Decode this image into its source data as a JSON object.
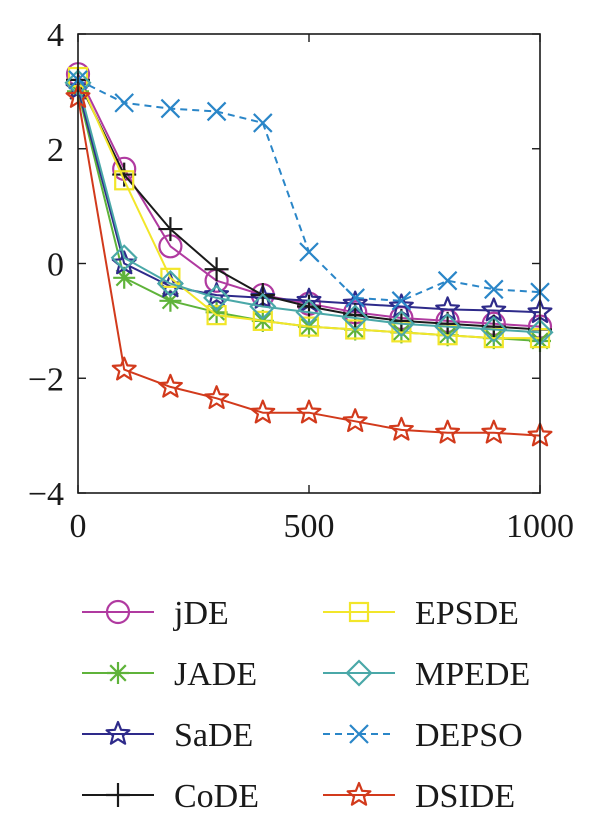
{
  "chart_data": {
    "type": "line",
    "title": "",
    "xlabel": "",
    "ylabel": "",
    "xlim": [
      0,
      1000
    ],
    "ylim": [
      -4,
      4
    ],
    "x_ticks": [
      "0",
      "500",
      "1000"
    ],
    "y_ticks": [
      "4",
      "2",
      "0",
      "−2",
      "−4"
    ],
    "grid": false,
    "legend_placement": "bottom, two columns",
    "x": [
      0,
      100,
      200,
      300,
      400,
      500,
      600,
      700,
      800,
      900,
      1000
    ],
    "series": [
      {
        "name": "jDE",
        "color": "#b03aa0",
        "marker": "circle",
        "dash": "solid",
        "values": [
          3.3,
          1.65,
          0.3,
          -0.3,
          -0.55,
          -0.7,
          -0.85,
          -0.95,
          -1.0,
          -1.05,
          -1.1
        ]
      },
      {
        "name": "JADE",
        "color": "#5fb33a",
        "marker": "asterisk",
        "dash": "solid",
        "values": [
          3.0,
          -0.25,
          -0.65,
          -0.85,
          -1.0,
          -1.1,
          -1.15,
          -1.2,
          -1.25,
          -1.3,
          -1.35
        ]
      },
      {
        "name": "SaDE",
        "color": "#2e2a8a",
        "marker": "star",
        "dash": "solid",
        "values": [
          3.05,
          0.0,
          -0.4,
          -0.55,
          -0.6,
          -0.65,
          -0.7,
          -0.75,
          -0.8,
          -0.82,
          -0.85
        ]
      },
      {
        "name": "CoDE",
        "color": "#1a1a1a",
        "marker": "plus",
        "dash": "solid",
        "values": [
          3.2,
          1.55,
          0.6,
          -0.1,
          -0.55,
          -0.75,
          -0.9,
          -1.0,
          -1.05,
          -1.1,
          -1.15
        ]
      },
      {
        "name": "EPSDE",
        "color": "#f2e62a",
        "marker": "square",
        "dash": "solid",
        "values": [
          3.25,
          1.45,
          -0.25,
          -0.9,
          -1.0,
          -1.1,
          -1.15,
          -1.2,
          -1.25,
          -1.3,
          -1.3
        ]
      },
      {
        "name": "MPEDE",
        "color": "#4aa8a8",
        "marker": "diamond",
        "dash": "solid",
        "values": [
          3.15,
          0.1,
          -0.35,
          -0.6,
          -0.75,
          -0.85,
          -0.95,
          -1.05,
          -1.1,
          -1.15,
          -1.2
        ]
      },
      {
        "name": "DEPSO",
        "color": "#2a86c8",
        "marker": "x",
        "dash": "dashed",
        "values": [
          3.2,
          2.8,
          2.7,
          2.65,
          2.45,
          0.2,
          -0.6,
          -0.65,
          -0.3,
          -0.45,
          -0.5
        ]
      },
      {
        "name": "DSIDE",
        "color": "#d23a1c",
        "marker": "star",
        "dash": "solid",
        "values": [
          2.9,
          -1.85,
          -2.15,
          -2.35,
          -2.6,
          -2.6,
          -2.75,
          -2.9,
          -2.95,
          -2.95,
          -3.0
        ]
      }
    ]
  }
}
